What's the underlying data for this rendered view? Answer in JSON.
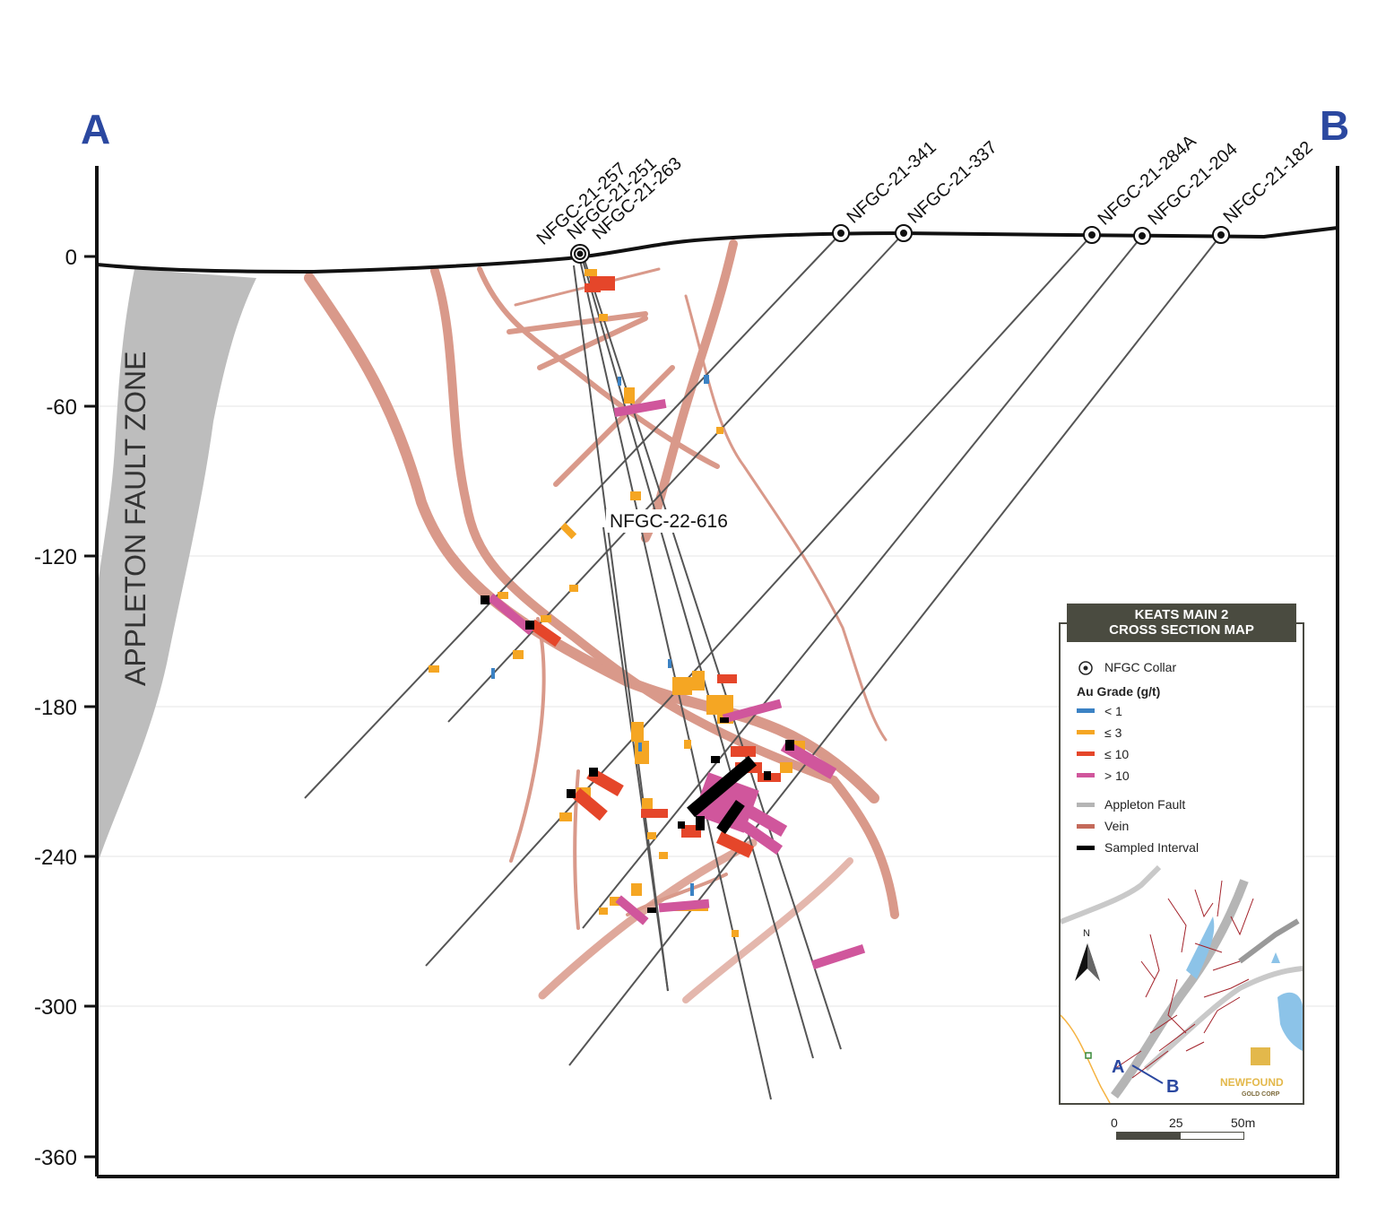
{
  "section": {
    "label_a": "A",
    "label_b": "B",
    "fault_zone_label": "APPLETON FAULT ZONE",
    "y_axis_ticks": [
      "0",
      "-60",
      "-120",
      "-180",
      "-240",
      "-300",
      "-360"
    ],
    "drill_holes": [
      "NFGC-21-257",
      "NFGC-21-251",
      "NFGC-21-263",
      "NFGC-21-341",
      "NFGC-21-337",
      "NFGC-21-284A",
      "NFGC-21-204",
      "NFGC-21-182"
    ],
    "callout_hole": "NFGC-22-616"
  },
  "legend": {
    "title_line1": "KEATS MAIN 2",
    "title_line2": "CROSS SECTION MAP",
    "collar_label": "NFGC Collar",
    "grade_heading": "Au Grade (g/t)",
    "grades": [
      {
        "label": "< 1",
        "color": "#3b82c4"
      },
      {
        "label": "≤ 3",
        "color": "#f5a623"
      },
      {
        "label": "≤ 10",
        "color": "#e5462a"
      },
      {
        "label": "> 10",
        "color": "#d0569c"
      }
    ],
    "features": [
      {
        "label": "Appleton Fault",
        "color": "#b5b5b5"
      },
      {
        "label": "Vein",
        "color": "#c46a5a"
      },
      {
        "label": "Sampled Interval",
        "color": "#000000"
      }
    ],
    "inset": {
      "north": "N",
      "a": "A",
      "b": "B"
    },
    "logo_line1": "NEWFOUND",
    "logo_line2": "GOLD CORP",
    "scale": [
      "0",
      "25",
      "50m"
    ]
  },
  "colors": {
    "ab_label": "#2b48a0",
    "vein": "#d9998a",
    "fault": "#b9b9b9",
    "hole": "#555555"
  }
}
